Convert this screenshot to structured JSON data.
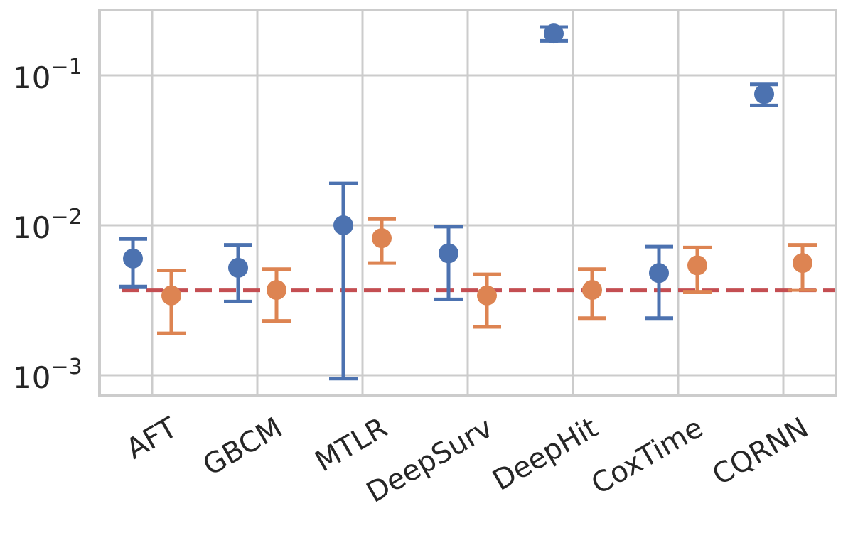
{
  "chart_data": {
    "type": "scatter",
    "categories": [
      "AFT",
      "GBCM",
      "MTLR",
      "DeepSurv",
      "DeepHit",
      "CoxTime",
      "CQRNN"
    ],
    "y_scale": "log",
    "ylim": [
      0.0007,
      0.28
    ],
    "y_ticks": [
      {
        "value": 0.001,
        "base": "10",
        "exp": "−3"
      },
      {
        "value": 0.01,
        "base": "10",
        "exp": "−2"
      },
      {
        "value": 0.1,
        "base": "10",
        "exp": "−1"
      }
    ],
    "grid": true,
    "series": [
      {
        "color": "#4c72b0",
        "points": [
          {
            "y": 0.006,
            "lo": 0.0039,
            "hi": 0.0081
          },
          {
            "y": 0.0052,
            "lo": 0.0031,
            "hi": 0.0074
          },
          {
            "y": 0.01,
            "lo": 0.00095,
            "hi": 0.019
          },
          {
            "y": 0.0065,
            "lo": 0.0032,
            "hi": 0.0098
          },
          {
            "y": 0.19,
            "lo": 0.17,
            "hi": 0.21
          },
          {
            "y": 0.0048,
            "lo": 0.0024,
            "hi": 0.0072
          },
          {
            "y": 0.075,
            "lo": 0.063,
            "hi": 0.087
          }
        ]
      },
      {
        "color": "#dd8452",
        "points": [
          {
            "y": 0.0034,
            "lo": 0.0019,
            "hi": 0.005
          },
          {
            "y": 0.0037,
            "lo": 0.0023,
            "hi": 0.0051
          },
          {
            "y": 0.0082,
            "lo": 0.0056,
            "hi": 0.011
          },
          {
            "y": 0.0034,
            "lo": 0.0021,
            "hi": 0.0047
          },
          {
            "y": 0.0037,
            "lo": 0.0024,
            "hi": 0.0051
          },
          {
            "y": 0.0054,
            "lo": 0.0036,
            "hi": 0.0071
          },
          {
            "y": 0.0056,
            "lo": 0.0037,
            "hi": 0.0074
          }
        ]
      }
    ],
    "reference_line": {
      "y": 0.0037,
      "color": "#c44e52",
      "style": "dashed"
    }
  }
}
